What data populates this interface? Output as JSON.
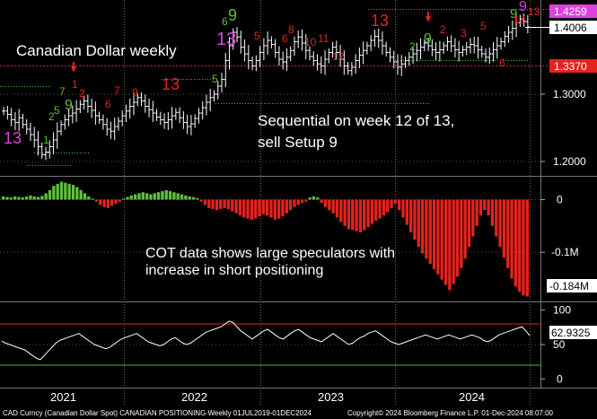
{
  "chart_data": [
    {
      "type": "ohlc",
      "title": "Canadian Dollar weekly",
      "y_ticks": [
        1.2,
        1.3
      ],
      "y_tick_labels": [
        "1.2000",
        "1.3000"
      ],
      "ylim": [
        1.18,
        1.44
      ],
      "last_price_label": "1.4006",
      "high_label": "1.4259",
      "low_label": "1.3370",
      "annotation": [
        "Sequential on week 12 of 13,",
        "sell Setup 9"
      ],
      "closes_approx": [
        1.275,
        1.27,
        1.262,
        1.258,
        1.265,
        1.255,
        1.248,
        1.24,
        1.232,
        1.222,
        1.21,
        1.214,
        1.222,
        1.232,
        1.245,
        1.255,
        1.262,
        1.268,
        1.272,
        1.278,
        1.285,
        1.29,
        1.282,
        1.276,
        1.268,
        1.262,
        1.255,
        1.248,
        1.245,
        1.252,
        1.26,
        1.268,
        1.275,
        1.282,
        1.288,
        1.295,
        1.29,
        1.282,
        1.277,
        1.272,
        1.266,
        1.262,
        1.258,
        1.262,
        1.268,
        1.273,
        1.265,
        1.258,
        1.252,
        1.256,
        1.264,
        1.272,
        1.28,
        1.288,
        1.295,
        1.3,
        1.312,
        1.322,
        1.35,
        1.372,
        1.392,
        1.385,
        1.37,
        1.36,
        1.35,
        1.342,
        1.35,
        1.362,
        1.372,
        1.38,
        1.374,
        1.362,
        1.352,
        1.348,
        1.355,
        1.365,
        1.378,
        1.385,
        1.376,
        1.365,
        1.356,
        1.35,
        1.345,
        1.342,
        1.352,
        1.362,
        1.37,
        1.362,
        1.352,
        1.342,
        1.335,
        1.34,
        1.35,
        1.358,
        1.365,
        1.372,
        1.38,
        1.386,
        1.38,
        1.372,
        1.362,
        1.355,
        1.348,
        1.34,
        1.345,
        1.35,
        1.355,
        1.36,
        1.365,
        1.37,
        1.376,
        1.372,
        1.366,
        1.362,
        1.366,
        1.372,
        1.378,
        1.372,
        1.366,
        1.362,
        1.366,
        1.37,
        1.374,
        1.372,
        1.366,
        1.36,
        1.355,
        1.36,
        1.366,
        1.372,
        1.378,
        1.386,
        1.392,
        1.398,
        1.406,
        1.412,
        1.408,
        1.4
      ]
    },
    {
      "type": "bar",
      "title": "COT data shows large speculators with increase in short positioning",
      "title_lines": [
        "COT data shows large speculators with",
        "increase in short positioning"
      ],
      "y_ticks": [
        0,
        -0.1
      ],
      "y_tick_labels": [
        "0",
        "-0.1M"
      ],
      "last_value_label": "-0.184M",
      "ylim": [
        -0.19,
        0.04
      ],
      "values_millions": [
        0.006,
        0.005,
        0.004,
        0.006,
        0.005,
        0.004,
        0.006,
        0.008,
        0.006,
        0.005,
        0.007,
        0.012,
        0.018,
        0.026,
        0.03,
        0.034,
        0.032,
        0.03,
        0.028,
        0.024,
        0.018,
        0.012,
        0.006,
        0.002,
        -0.004,
        -0.01,
        -0.014,
        -0.016,
        -0.012,
        -0.008,
        -0.004,
        0.002,
        0.005,
        0.008,
        0.01,
        0.012,
        0.014,
        0.012,
        0.01,
        0.012,
        0.014,
        0.016,
        0.018,
        0.016,
        0.014,
        0.012,
        0.01,
        0.008,
        0.006,
        0.005,
        0.003,
        -0.004,
        -0.01,
        -0.016,
        -0.018,
        -0.02,
        -0.018,
        -0.016,
        -0.018,
        -0.022,
        -0.026,
        -0.03,
        -0.034,
        -0.036,
        -0.038,
        -0.036,
        -0.032,
        -0.028,
        -0.03,
        -0.034,
        -0.038,
        -0.036,
        -0.032,
        -0.026,
        -0.02,
        -0.014,
        -0.01,
        -0.006,
        -0.004,
        0.004,
        0.006,
        0.004,
        -0.006,
        -0.014,
        -0.02,
        -0.026,
        -0.034,
        -0.042,
        -0.05,
        -0.056,
        -0.058,
        -0.06,
        -0.062,
        -0.058,
        -0.052,
        -0.046,
        -0.04,
        -0.036,
        -0.03,
        -0.024,
        -0.016,
        -0.008,
        -0.02,
        -0.034,
        -0.048,
        -0.062,
        -0.076,
        -0.09,
        -0.102,
        -0.112,
        -0.122,
        -0.132,
        -0.142,
        -0.152,
        -0.162,
        -0.172,
        -0.16,
        -0.146,
        -0.13,
        -0.112,
        -0.09,
        -0.07,
        -0.05,
        -0.03,
        -0.02,
        -0.03,
        -0.05,
        -0.07,
        -0.09,
        -0.11,
        -0.13,
        -0.15,
        -0.165,
        -0.175,
        -0.182,
        -0.184
      ]
    },
    {
      "type": "line",
      "title": "",
      "y_ticks": [
        100,
        50,
        0
      ],
      "y_tick_labels": [
        "100",
        "50",
        "0"
      ],
      "ylim": [
        -10,
        110
      ],
      "reference_lines": [
        80,
        20
      ],
      "last_value_label": "62.9325",
      "values": [
        55,
        52,
        50,
        48,
        46,
        44,
        42,
        38,
        34,
        30,
        28,
        34,
        40,
        46,
        52,
        56,
        58,
        60,
        62,
        64,
        66,
        62,
        58,
        54,
        50,
        48,
        46,
        44,
        46,
        50,
        54,
        58,
        60,
        62,
        64,
        66,
        62,
        58,
        54,
        52,
        50,
        48,
        50,
        54,
        58,
        60,
        56,
        52,
        50,
        52,
        56,
        60,
        64,
        68,
        70,
        72,
        74,
        76,
        80,
        84,
        82,
        76,
        70,
        66,
        62,
        58,
        62,
        66,
        70,
        72,
        68,
        64,
        60,
        58,
        62,
        66,
        70,
        72,
        68,
        64,
        60,
        58,
        56,
        54,
        58,
        62,
        66,
        62,
        58,
        54,
        50,
        52,
        56,
        60,
        62,
        66,
        68,
        70,
        66,
        62,
        58,
        54,
        52,
        50,
        52,
        54,
        56,
        58,
        60,
        62,
        64,
        62,
        60,
        58,
        60,
        62,
        64,
        62,
        60,
        58,
        60,
        62,
        64,
        62,
        60,
        56,
        54,
        56,
        60,
        64,
        66,
        68,
        70,
        72,
        74,
        76,
        70,
        63
      ]
    }
  ],
  "x_axis": {
    "labels": [
      "2021",
      "2022",
      "2023",
      "2024"
    ]
  },
  "footer": {
    "left": "CAD Curncy (Canadian Dollar Spot) CANADIAN POSITIONING  Weekly 01JUL2019-01DEC2024",
    "right": "Copyright© 2024 Bloomberg Finance L.P.     01-Dec-2024 08:07:00"
  },
  "colors": {
    "background": "#000000",
    "price_bars": "#ffffff",
    "positive": "#5cc13a",
    "negative": "#e4231e",
    "red_line": "#e4231e",
    "green_line": "#3fc23f",
    "magenta_label": "#e040e0",
    "dotted_magenta": "#d04bd0"
  },
  "td_labels": [
    {
      "t": "13",
      "c": "magenta"
    },
    {
      "t": "1",
      "c": "green"
    },
    {
      "t": "2",
      "c": "green"
    },
    {
      "t": "5",
      "c": "green"
    },
    {
      "t": "7",
      "c": "green"
    },
    {
      "t": "9",
      "c": "green"
    },
    {
      "t": "1",
      "c": "red"
    },
    {
      "t": "2",
      "c": "red"
    },
    {
      "t": "6",
      "c": "red"
    },
    {
      "t": "7",
      "c": "red"
    },
    {
      "t": "9",
      "c": "red"
    },
    {
      "t": "13",
      "c": "red"
    },
    {
      "t": "5",
      "c": "green"
    },
    {
      "t": "6",
      "c": "green"
    },
    {
      "t": "9",
      "c": "green"
    },
    {
      "t": "13",
      "c": "magenta"
    },
    {
      "t": "5",
      "c": "red"
    },
    {
      "t": "6",
      "c": "red"
    },
    {
      "t": "8",
      "c": "red"
    },
    {
      "t": "10",
      "c": "red"
    },
    {
      "t": "11",
      "c": "red"
    },
    {
      "t": "12",
      "c": "red"
    },
    {
      "t": "13",
      "c": "red"
    },
    {
      "t": "2",
      "c": "green"
    },
    {
      "t": "9",
      "c": "green"
    },
    {
      "t": "2",
      "c": "red"
    },
    {
      "t": "3",
      "c": "red"
    },
    {
      "t": "5",
      "c": "red"
    },
    {
      "t": "6",
      "c": "red"
    },
    {
      "t": "9",
      "c": "green"
    },
    {
      "t": "9",
      "c": "magenta"
    },
    {
      "t": "12",
      "c": "red"
    },
    {
      "t": "13",
      "c": "red"
    }
  ]
}
